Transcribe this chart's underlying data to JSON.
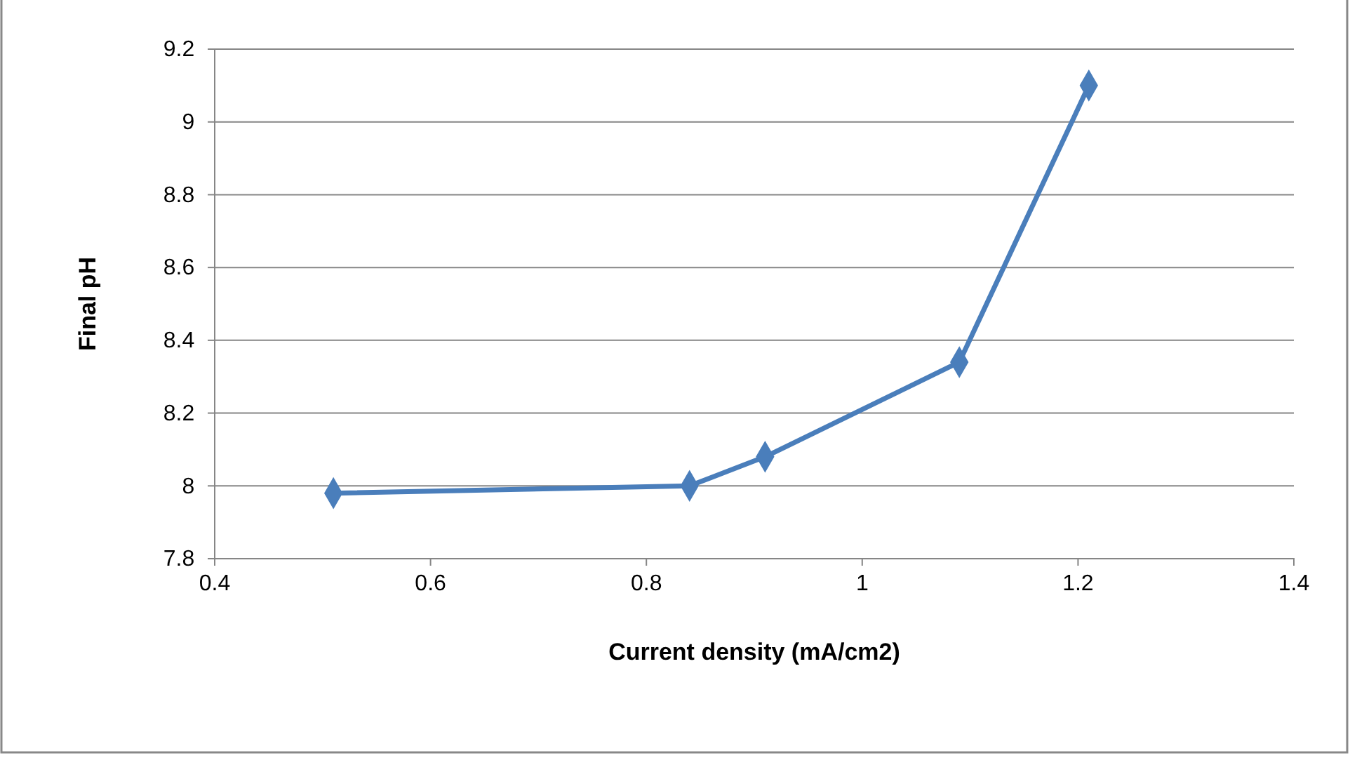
{
  "chart_data": {
    "type": "line",
    "xlabel": "Current density (mA/cm2)",
    "ylabel": "Final pH",
    "x": [
      0.51,
      0.84,
      0.91,
      1.09,
      1.21
    ],
    "series": [
      {
        "color": "#4a7ebb",
        "values": [
          7.98,
          8.0,
          8.08,
          8.34,
          9.1
        ]
      }
    ],
    "xlim": [
      0.4,
      1.4
    ],
    "xticks": [
      0.4,
      0.6,
      0.8,
      1,
      1.2,
      1.4
    ],
    "ylim": [
      7.8,
      9.2
    ],
    "yticks": [
      7.8,
      8,
      8.2,
      8.4,
      8.6,
      8.8,
      9,
      9.2
    ],
    "grid": "y",
    "marker": "diamond",
    "line_style": "solid"
  }
}
